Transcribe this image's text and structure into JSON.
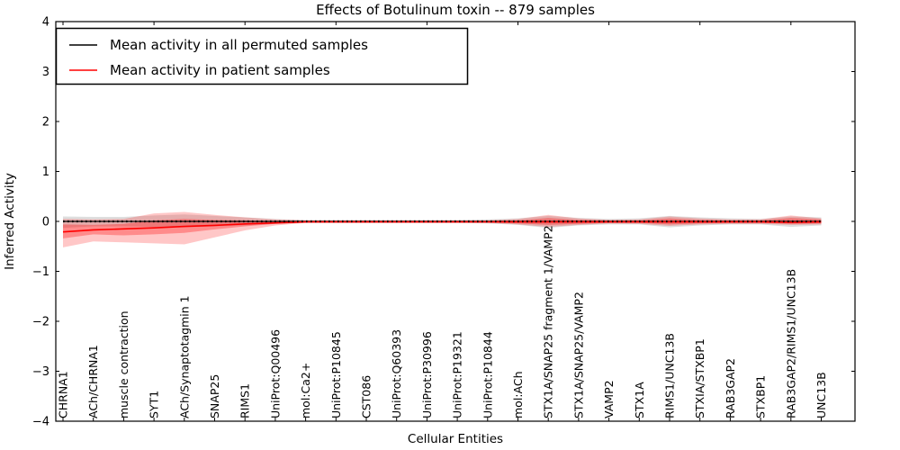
{
  "chart_data": {
    "type": "line",
    "title": "Effects of Botulinum toxin -- 879 samples",
    "xlabel": "Cellular Entities",
    "ylabel": "Inferred Activity",
    "ylim": [
      -4,
      4
    ],
    "yticks": [
      4,
      3,
      2,
      1,
      0,
      -1,
      -2,
      -3,
      -4
    ],
    "ytick_labels": [
      "4",
      "3",
      "2",
      "1",
      "0",
      "−1",
      "−2",
      "−3",
      "−4"
    ],
    "grid": false,
    "legend_position": "upper-left",
    "legend": [
      {
        "label": "Mean activity in all permuted samples",
        "color": "#000000"
      },
      {
        "label": "Mean activity in patient samples",
        "color": "#ff0000"
      }
    ],
    "colors": {
      "permuted_line": "#000000",
      "patient_line": "#ff0000",
      "permuted_band": "rgba(0,0,0,0.13)",
      "patient_band_outer": "rgba(255,0,0,0.22)",
      "patient_band_inner": "rgba(255,0,0,0.30)",
      "axis": "#000000"
    },
    "categories": [
      "CHRNA1",
      "ACh/CHRNA1",
      "muscle contraction",
      "SYT1",
      "ACh/Synaptotagmin 1",
      "SNAP25",
      "RIMS1",
      "UniProt:Q00496",
      "mol:Ca2+",
      "UniProt:P10845",
      "CST086",
      "UniProt:Q60393",
      "UniProt:P30996",
      "UniProt:P19321",
      "UniProt:P10844",
      "mol:ACh",
      "STX1A/SNAP25 fragment 1/VAMP2",
      "STX1A/SNAP25/VAMP2",
      "VAMP2",
      "STX1A",
      "RIMS1/UNC13B",
      "STXIA/STXBP1",
      "RAB3GAP2",
      "STXBP1",
      "RAB3GAP2/RIMS1/UNC13B",
      "UNC13B"
    ],
    "series": [
      {
        "name": "permuted_mean",
        "values": [
          0,
          0,
          0,
          0,
          0,
          0,
          0,
          0,
          0,
          0,
          0,
          0,
          0,
          0,
          0,
          0,
          0,
          0,
          0,
          0,
          0,
          0,
          0,
          0,
          0,
          0
        ]
      },
      {
        "name": "patient_mean",
        "values": [
          -0.21,
          -0.17,
          -0.15,
          -0.13,
          -0.1,
          -0.08,
          -0.05,
          -0.03,
          -0.01,
          -0.01,
          -0.01,
          -0.01,
          -0.01,
          -0.01,
          -0.01,
          -0.01,
          -0.01,
          -0.01,
          -0.01,
          -0.01,
          -0.01,
          -0.01,
          -0.01,
          -0.01,
          -0.02,
          -0.01
        ]
      }
    ],
    "bands": {
      "permuted_upper": [
        0.1,
        0.09,
        0.09,
        0.12,
        0.14,
        0.11,
        0.08,
        0.05,
        0.03,
        0.03,
        0.03,
        0.03,
        0.03,
        0.03,
        0.04,
        0.06,
        0.11,
        0.07,
        0.05,
        0.06,
        0.11,
        0.08,
        0.06,
        0.05,
        0.1,
        0.08
      ],
      "permuted_lower": [
        -0.13,
        -0.1,
        -0.1,
        -0.11,
        -0.12,
        -0.1,
        -0.08,
        -0.05,
        -0.03,
        -0.03,
        -0.03,
        -0.03,
        -0.03,
        -0.03,
        -0.04,
        -0.07,
        -0.13,
        -0.08,
        -0.06,
        -0.06,
        -0.12,
        -0.08,
        -0.06,
        -0.06,
        -0.11,
        -0.08
      ],
      "patient_outer_upper": [
        0.05,
        0.04,
        0.05,
        0.16,
        0.19,
        0.13,
        0.08,
        0.04,
        0.02,
        0.02,
        0.02,
        0.02,
        0.02,
        0.02,
        0.02,
        0.05,
        0.13,
        0.06,
        0.03,
        0.04,
        0.1,
        0.06,
        0.04,
        0.04,
        0.12,
        0.06
      ],
      "patient_outer_lower": [
        -0.52,
        -0.4,
        -0.42,
        -0.44,
        -0.46,
        -0.32,
        -0.18,
        -0.08,
        -0.03,
        -0.03,
        -0.03,
        -0.03,
        -0.03,
        -0.03,
        -0.03,
        -0.06,
        -0.11,
        -0.07,
        -0.04,
        -0.05,
        -0.09,
        -0.06,
        -0.05,
        -0.05,
        -0.07,
        -0.06
      ],
      "patient_inner_upper": [
        -0.06,
        -0.07,
        -0.05,
        0.02,
        0.05,
        0.03,
        0.02,
        0.01,
        0.01,
        0.01,
        0.01,
        0.01,
        0.01,
        0.01,
        0.01,
        0.02,
        0.07,
        0.03,
        0.02,
        0.02,
        0.06,
        0.03,
        0.02,
        0.02,
        0.07,
        0.04
      ],
      "patient_inner_lower": [
        -0.34,
        -0.26,
        -0.28,
        -0.26,
        -0.23,
        -0.16,
        -0.1,
        -0.05,
        -0.02,
        -0.02,
        -0.02,
        -0.02,
        -0.02,
        -0.02,
        -0.02,
        -0.04,
        -0.07,
        -0.05,
        -0.03,
        -0.03,
        -0.06,
        -0.04,
        -0.03,
        -0.03,
        -0.05,
        -0.04
      ]
    }
  }
}
